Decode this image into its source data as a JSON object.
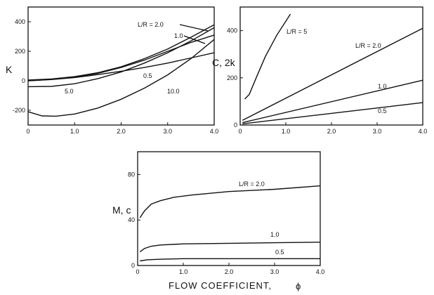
{
  "x_title": "FLOW COEFFICIENT,",
  "x_symbol": "ϕ",
  "chart_data": [
    {
      "type": "line",
      "ylabel": "K",
      "xlabel": "",
      "xlim": [
        0,
        4.0
      ],
      "ylim": [
        -300,
        500
      ],
      "xticks": [
        "0",
        "1.0",
        "2.0",
        "3.0",
        "4.0"
      ],
      "yticks": [
        "-200",
        "0",
        "200",
        "400"
      ],
      "ytick_values": [
        -200,
        0,
        200,
        400
      ],
      "series": [
        {
          "name": "L/R = 2.0",
          "x": [
            0,
            0.5,
            1.0,
            1.5,
            2.0,
            2.5,
            3.0,
            3.5,
            4.0
          ],
          "y": [
            5,
            12,
            28,
            55,
            95,
            150,
            215,
            295,
            380
          ]
        },
        {
          "name": "1.0",
          "x": [
            0,
            0.5,
            1.0,
            1.5,
            2.0,
            2.5,
            3.0,
            3.5,
            4.0
          ],
          "y": [
            0,
            10,
            25,
            50,
            90,
            140,
            200,
            260,
            310
          ]
        },
        {
          "name": "0.5",
          "x": [
            0,
            0.5,
            1.0,
            1.5,
            2.0,
            2.5,
            3.0,
            3.5,
            4.0
          ],
          "y": [
            0,
            8,
            22,
            42,
            65,
            90,
            120,
            155,
            190
          ]
        },
        {
          "name": "5.0",
          "x": [
            0,
            0.5,
            1.0,
            1.5,
            2.0,
            2.5,
            3.0,
            3.5,
            4.0
          ],
          "y": [
            -40,
            -38,
            -20,
            15,
            60,
            120,
            190,
            270,
            360
          ]
        },
        {
          "name": "10.0",
          "x": [
            0,
            0.3,
            0.6,
            1.0,
            1.5,
            2.0,
            2.5,
            3.0,
            3.5,
            4.0
          ],
          "y": [
            -210,
            -238,
            -240,
            -225,
            -185,
            -125,
            -50,
            40,
            150,
            280
          ]
        }
      ],
      "annotations": [
        "L/R = 2.0",
        "1.0",
        "0.5",
        "5.0",
        "10.0"
      ]
    },
    {
      "type": "line",
      "ylabel": "C, 2k",
      "xlabel": "",
      "xlim": [
        0,
        4.0
      ],
      "ylim": [
        0,
        500
      ],
      "xticks": [
        "0",
        "1.0",
        "2.0",
        "3.0",
        "4.0"
      ],
      "yticks": [
        "0",
        "200",
        "400"
      ],
      "ytick_values": [
        0,
        200,
        400
      ],
      "series": [
        {
          "name": "L/R = 5",
          "x": [
            0.1,
            0.2,
            0.35,
            0.55,
            0.8,
            1.1
          ],
          "y": [
            110,
            130,
            200,
            290,
            380,
            470
          ]
        },
        {
          "name": "L/R = 2.0",
          "x": [
            0.05,
            4.0
          ],
          "y": [
            20,
            410
          ]
        },
        {
          "name": "1.0",
          "x": [
            0.05,
            4.0
          ],
          "y": [
            10,
            190
          ]
        },
        {
          "name": "0.5",
          "x": [
            0.05,
            4.0
          ],
          "y": [
            5,
            95
          ]
        }
      ],
      "annotations": [
        "L/R = 5",
        "L/R = 2.0",
        "1.0",
        "0.5"
      ]
    },
    {
      "type": "line",
      "ylabel": "M, c",
      "xlabel": "FLOW COEFFICIENT, ϕ",
      "xlim": [
        0,
        4.0
      ],
      "ylim": [
        0,
        100
      ],
      "xticks": [
        "0",
        "1.0",
        "2.0",
        "3.0",
        "4.0"
      ],
      "yticks": [
        "0",
        "40",
        "80"
      ],
      "ytick_values": [
        0,
        40,
        80
      ],
      "series": [
        {
          "name": "L/R = 2.0",
          "x": [
            0.05,
            0.15,
            0.3,
            0.5,
            0.8,
            1.2,
            2.0,
            3.0,
            4.0
          ],
          "y": [
            42,
            48,
            54,
            57,
            60,
            62,
            65,
            67,
            70
          ]
        },
        {
          "name": "1.0",
          "x": [
            0.05,
            0.15,
            0.3,
            0.5,
            1.0,
            2.0,
            3.0,
            4.0
          ],
          "y": [
            12,
            15,
            17,
            18,
            19,
            19.5,
            20,
            20.5
          ]
        },
        {
          "name": "0.5",
          "x": [
            0.05,
            0.2,
            0.5,
            1.0,
            2.0,
            3.0,
            4.0
          ],
          "y": [
            4,
            5,
            5.5,
            6,
            6,
            6,
            6
          ]
        }
      ],
      "annotations": [
        "L/R = 2.0",
        "1.0",
        "0.5"
      ]
    }
  ]
}
